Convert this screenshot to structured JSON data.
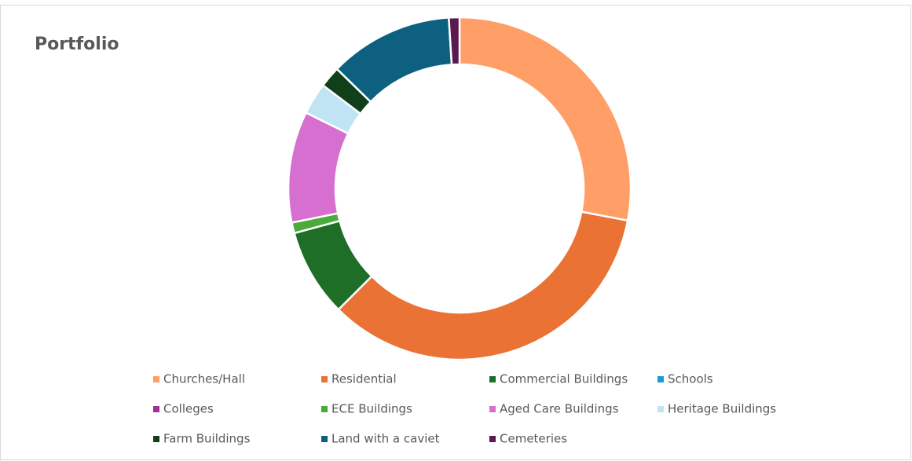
{
  "chart_data": {
    "type": "donut",
    "title": "Portfolio",
    "categories": [
      "Churches/Hall",
      "Residential",
      "Commercial Buildings",
      "Schools",
      "Colleges",
      "ECE Buildings",
      "Aged Care Buildings",
      "Heritage Buildings",
      "Farm Buildings",
      "Land with a caviet",
      "Cemeteries"
    ],
    "values": [
      28,
      34.5,
      8.3,
      0,
      0,
      1,
      10.5,
      3,
      2,
      11.7,
      1
    ],
    "colors": [
      "#ff9e66",
      "#ea7234",
      "#1e6e28",
      "#1a9ad6",
      "#a0309a",
      "#4aaa3a",
      "#d76fd0",
      "#c0e4f4",
      "#10401a",
      "#0e6080",
      "#5a1a50"
    ],
    "legend": "bottom"
  }
}
